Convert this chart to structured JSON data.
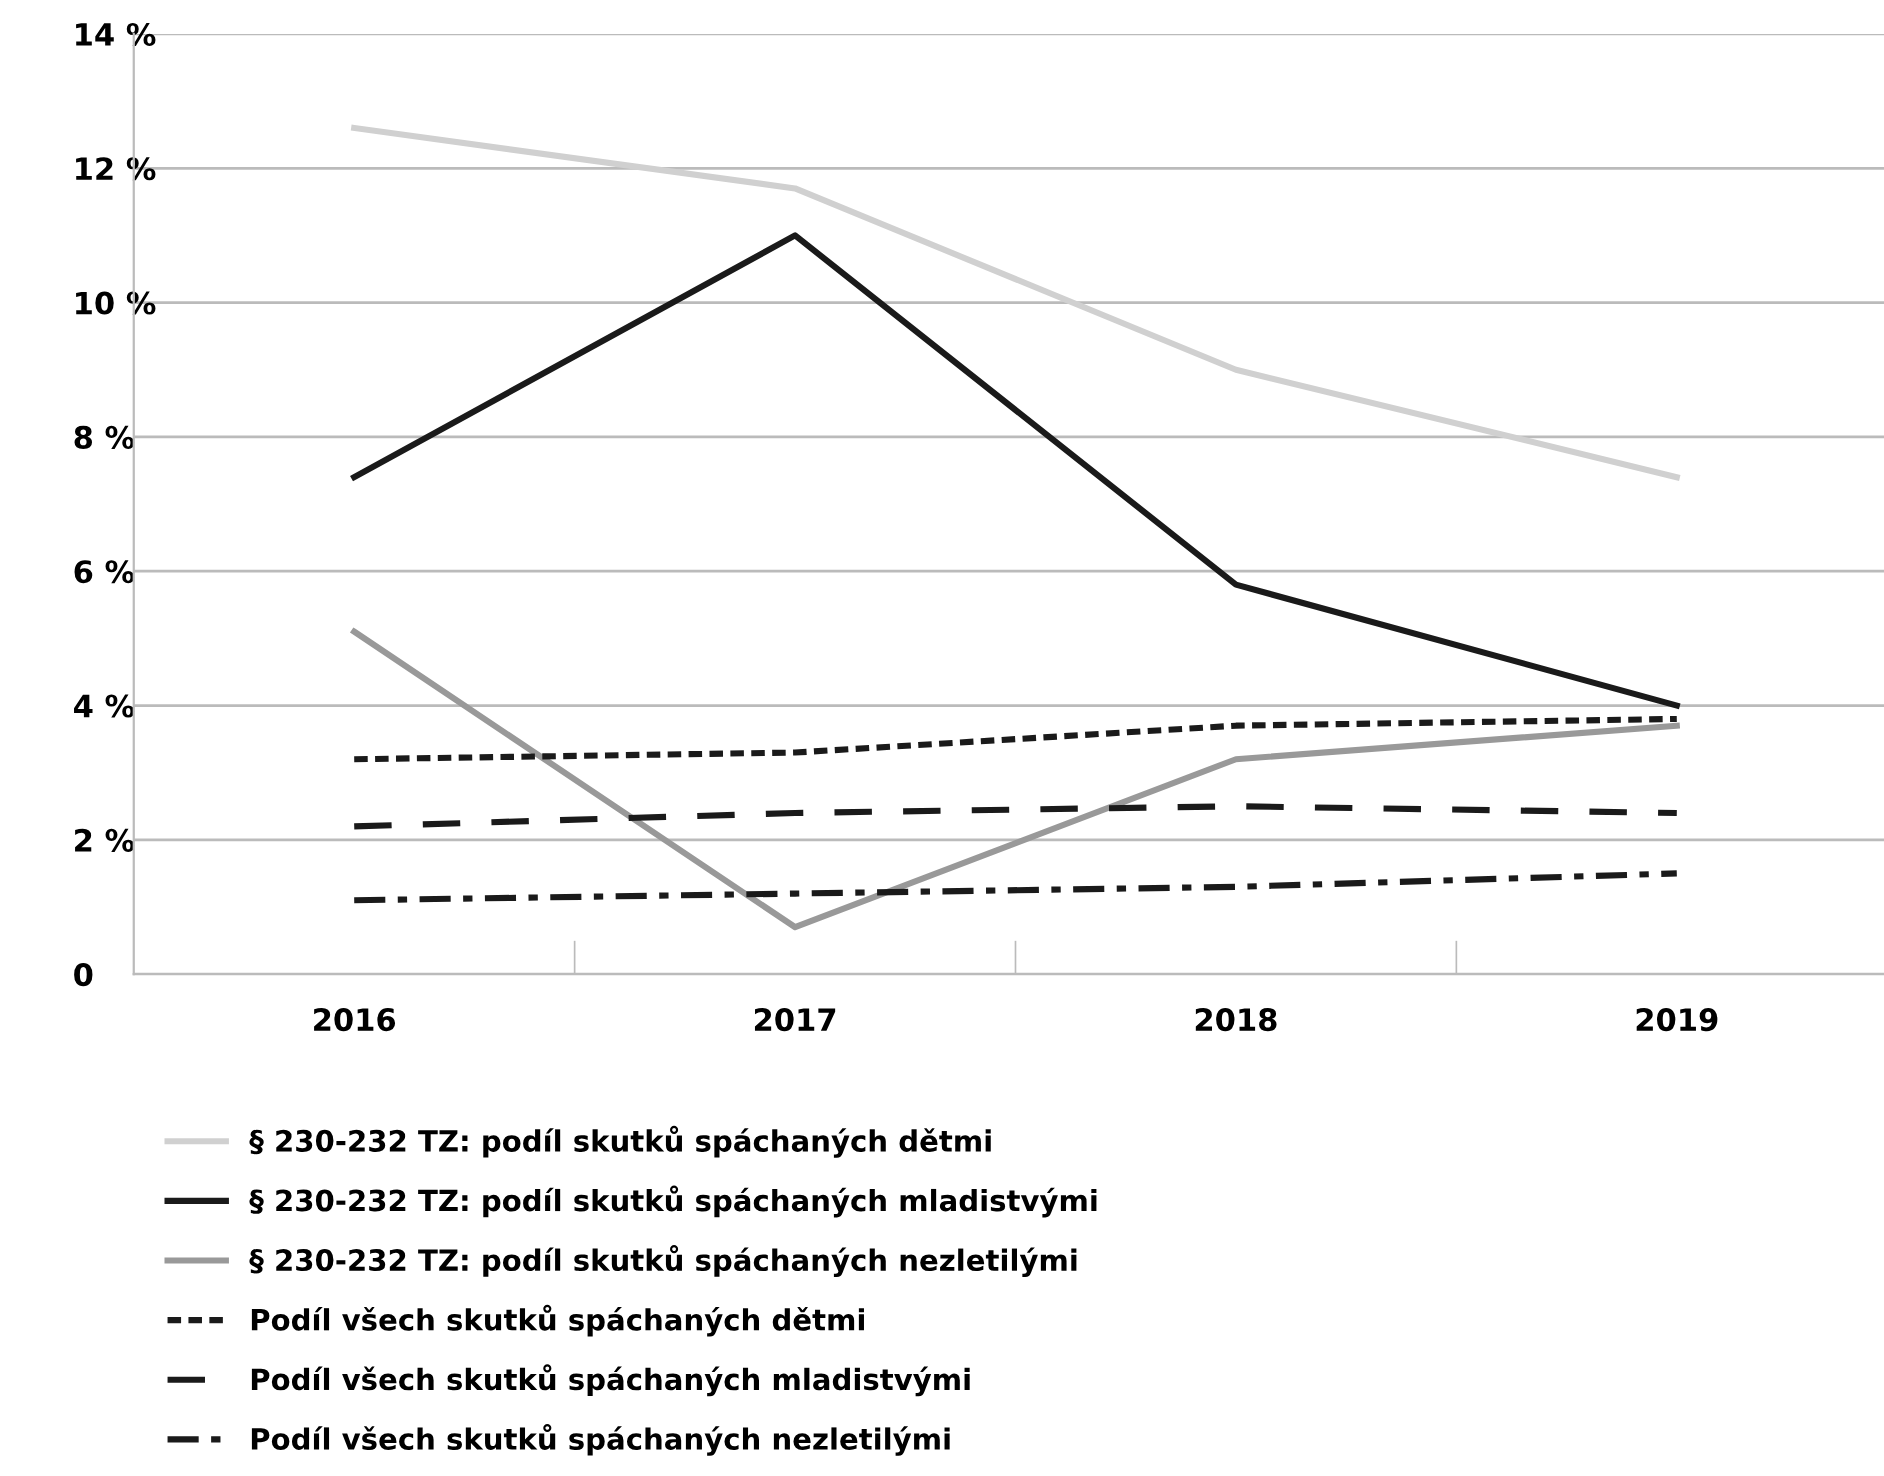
{
  "chart_data": {
    "type": "line",
    "categories": [
      "2016",
      "2017",
      "2018",
      "2019"
    ],
    "ylim": [
      0,
      14
    ],
    "yticks": [
      {
        "value": 0,
        "label": "0"
      },
      {
        "value": 2,
        "label": "2 %"
      },
      {
        "value": 4,
        "label": "4 %"
      },
      {
        "value": 6,
        "label": "6 %"
      },
      {
        "value": 8,
        "label": "8 %"
      },
      {
        "value": 10,
        "label": "10 %"
      },
      {
        "value": 12,
        "label": "12 %"
      },
      {
        "value": 14,
        "label": "14 %"
      }
    ],
    "grid": "y",
    "legend": "bottom",
    "marker": "none",
    "series": [
      {
        "name": "§ 230-232 TZ: podíl skutků spáchaných dětmi",
        "color": "#d0d0d0",
        "line_style": "solid",
        "values": [
          12.6,
          11.7,
          9.0,
          7.4
        ]
      },
      {
        "name": "§ 230-232 TZ: podíl skutků spáchaných mladistvými",
        "color": "#1a1a1a",
        "line_style": "solid",
        "values": [
          7.4,
          11.0,
          5.8,
          4.0
        ]
      },
      {
        "name": "§ 230-232 TZ: podíl skutků spáchaných nezletilými",
        "color": "#999999",
        "line_style": "solid",
        "values": [
          5.1,
          0.7,
          3.2,
          3.7
        ]
      },
      {
        "name": "Podíl všech skutků spáchaných dětmi",
        "color": "#1a1a1a",
        "line_style": "dotted",
        "values": [
          3.2,
          3.3,
          3.7,
          3.8
        ]
      },
      {
        "name": "Podíl všech skutků spáchaných mladistvými",
        "color": "#1a1a1a",
        "line_style": "dashed",
        "values": [
          2.2,
          2.4,
          2.5,
          2.4
        ]
      },
      {
        "name": "Podíl všech skutků spáchaných nezletilými",
        "color": "#1a1a1a",
        "line_style": "dashdot",
        "values": [
          1.1,
          1.2,
          1.3,
          1.5
        ]
      }
    ]
  }
}
